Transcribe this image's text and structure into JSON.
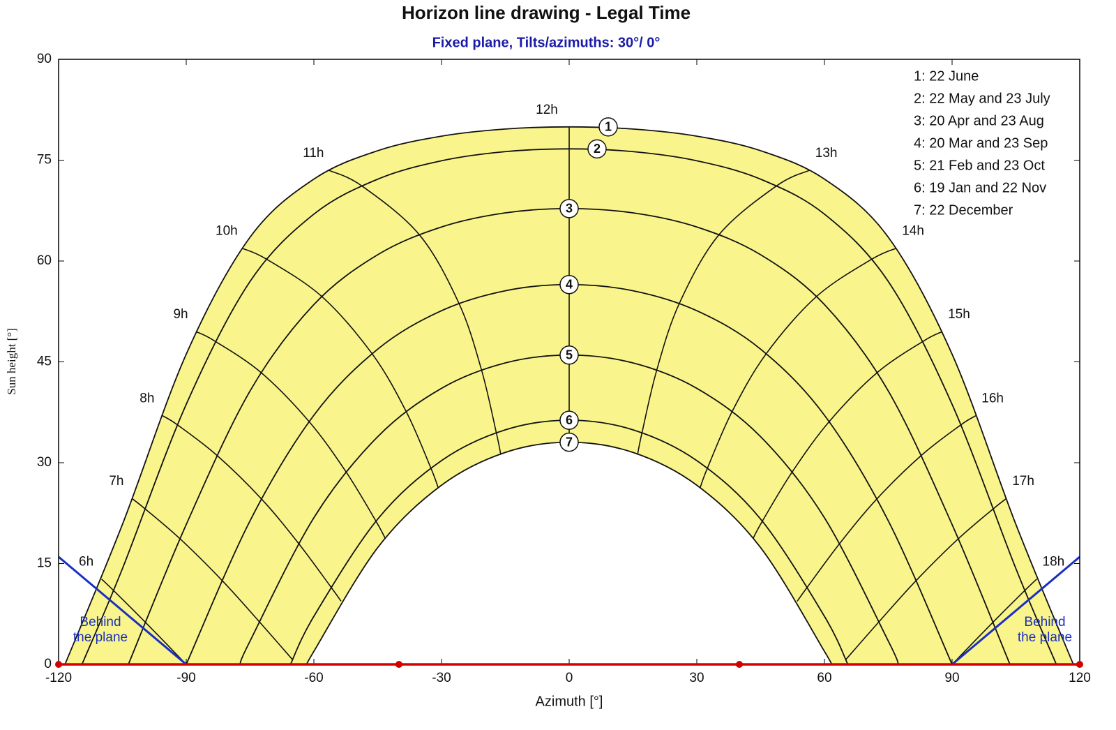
{
  "chart_data": {
    "type": "sunpath",
    "title": "Horizon line drawing - Legal Time",
    "subtitle": "Fixed plane, Tilts/azimuths: 30°/ 0°",
    "xlabel": "Azimuth [°]",
    "ylabel": "Sun height [°]",
    "xlim": [
      -120,
      120
    ],
    "ylim": [
      0,
      90
    ],
    "xticks": [
      -120,
      -90,
      -60,
      -30,
      0,
      30,
      60,
      90,
      120
    ],
    "yticks": [
      0,
      15,
      30,
      45,
      60,
      75,
      90
    ],
    "fill_color": "#f9f58c",
    "series": [
      {
        "name": "1: 22 June",
        "marker": "1",
        "color": "#111111",
        "x": [
          -118.5,
          -105,
          -90,
          -75,
          -60,
          -45,
          -30,
          -15,
          0,
          15,
          30,
          45,
          60,
          75,
          90,
          105,
          118.5
        ],
        "y": [
          0,
          20.82,
          46.14,
          63.54,
          72.18,
          76.41,
          78.57,
          79.63,
          79.95,
          79.63,
          78.57,
          76.41,
          72.18,
          63.54,
          46.14,
          20.82,
          0
        ]
      },
      {
        "name": "2: 22 May and 23 July",
        "marker": "2",
        "color": "#111111",
        "x": [
          -114.5,
          -105,
          -90,
          -75,
          -60,
          -45,
          -30,
          -15,
          0,
          15,
          30,
          45,
          60,
          75,
          90,
          105,
          114.5
        ],
        "y": [
          0,
          14.24,
          38.68,
          56.96,
          66.97,
          72.17,
          74.91,
          76.27,
          76.68,
          76.27,
          74.91,
          72.17,
          66.97,
          56.96,
          38.68,
          14.24,
          0
        ]
      },
      {
        "name": "3: 20 Apr and 23 Aug",
        "marker": "3",
        "color": "#111111",
        "x": [
          -103.6,
          -90,
          -75,
          -60,
          -45,
          -30,
          -15,
          0,
          15,
          30,
          45,
          60,
          75,
          90,
          103.6
        ],
        "y": [
          0,
          20.8,
          40.67,
          53.52,
          60.93,
          65.06,
          67.16,
          67.8,
          67.16,
          65.06,
          60.93,
          53.52,
          40.67,
          20.8,
          0
        ]
      },
      {
        "name": "4: 20 Mar and 23 Sep",
        "marker": "4",
        "color": "#111111",
        "x": [
          -90,
          -75,
          -60,
          -45,
          -30,
          -15,
          0,
          15,
          30,
          45,
          60,
          75,
          90
        ],
        "y": [
          0,
          21.36,
          37.06,
          46.89,
          52.61,
          55.58,
          56.5,
          55.58,
          52.61,
          46.89,
          37.06,
          21.36,
          0
        ]
      },
      {
        "name": "5: 21 Feb and 23 Oct",
        "marker": "5",
        "color": "#111111",
        "x": [
          -77.4,
          -75,
          -60,
          -45,
          -30,
          -15,
          0,
          15,
          30,
          45,
          60,
          75,
          77.4
        ],
        "y": [
          0,
          3.48,
          21.81,
          33.87,
          41.06,
          44.84,
          46.01,
          44.84,
          41.06,
          33.87,
          21.81,
          3.48,
          0
        ]
      },
      {
        "name": "6: 19 Jan and 22 Nov",
        "marker": "6",
        "color": "#111111",
        "x": [
          -65.5,
          -60,
          -45,
          -30,
          -15,
          0,
          15,
          30,
          45,
          60,
          65.5
        ],
        "y": [
          0,
          7.15,
          21.61,
          30.31,
          34.89,
          36.32,
          34.89,
          30.31,
          21.61,
          7.15,
          0
        ]
      },
      {
        "name": "7: 22 December",
        "marker": "7",
        "color": "#111111",
        "x": [
          -61.5,
          -60,
          -45,
          -30,
          -15,
          0,
          15,
          30,
          45,
          60,
          61.5
        ],
        "y": [
          0,
          1.94,
          17.37,
          26.65,
          31.53,
          33.05,
          31.53,
          26.65,
          17.37,
          1.94,
          0
        ]
      }
    ],
    "hour_lines": [
      {
        "label": "6h",
        "x": [
          -109.9,
          -107.1,
          -99.5,
          -90
        ],
        "y": [
          12.7,
          11.0,
          6.2,
          0
        ]
      },
      {
        "label": "7h",
        "x": [
          -102.8,
          -99.6,
          -91.4,
          -81.6,
          -72.9,
          -65.0
        ],
        "y": [
          24.7,
          23.1,
          18.65,
          12.5,
          6.4,
          0.7
        ]
      },
      {
        "label": "8h",
        "x": [
          -95.6,
          -92.0,
          -82.8,
          -72.3,
          -63.6,
          -56.1,
          -53.6
        ],
        "y": [
          37.0,
          35.6,
          31.1,
          24.6,
          18.0,
          11.6,
          9.4
        ]
      },
      {
        "label": "9h",
        "x": [
          -87.7,
          -83.3,
          -72.4,
          -61.1,
          -52.4,
          -45.4,
          -43.2
        ],
        "y": [
          49.5,
          48.1,
          43.4,
          36.1,
          28.6,
          21.3,
          18.7
        ]
      },
      {
        "label": "10h",
        "x": [
          -76.9,
          -71.1,
          -58.1,
          -46.3,
          -38.3,
          -32.5,
          -30.8
        ],
        "y": [
          61.9,
          60.26,
          54.7,
          46.2,
          37.6,
          29.2,
          26.3
        ]
      },
      {
        "label": "11h",
        "x": [
          -56.5,
          -48.8,
          -35.2,
          -25.9,
          -20.6,
          -17.1,
          -16.1
        ],
        "y": [
          73.5,
          71.2,
          63.9,
          53.7,
          43.8,
          34.4,
          31.3
        ]
      },
      {
        "label": "12h",
        "x": [
          0,
          0,
          0,
          0,
          0,
          0,
          0
        ],
        "y": [
          79.95,
          76.68,
          67.8,
          56.5,
          46.01,
          36.32,
          33.05
        ]
      },
      {
        "label": "13h",
        "x": [
          56.5,
          48.8,
          35.2,
          25.9,
          20.6,
          17.1,
          16.1
        ],
        "y": [
          73.5,
          71.2,
          63.9,
          53.7,
          43.8,
          34.4,
          31.3
        ]
      },
      {
        "label": "14h",
        "x": [
          76.9,
          71.1,
          58.1,
          46.3,
          38.3,
          32.5,
          30.8
        ],
        "y": [
          61.9,
          60.26,
          54.7,
          46.2,
          37.6,
          29.2,
          26.3
        ]
      },
      {
        "label": "15h",
        "x": [
          87.7,
          83.3,
          72.4,
          61.1,
          52.4,
          45.4,
          43.2
        ],
        "y": [
          49.5,
          48.1,
          43.4,
          36.1,
          28.6,
          21.3,
          18.7
        ]
      },
      {
        "label": "16h",
        "x": [
          95.6,
          92.0,
          82.8,
          72.3,
          63.6,
          56.1,
          53.6
        ],
        "y": [
          37.0,
          35.6,
          31.1,
          24.6,
          18.0,
          11.6,
          9.4
        ]
      },
      {
        "label": "17h",
        "x": [
          102.8,
          99.6,
          91.4,
          81.6,
          72.9,
          65.0
        ],
        "y": [
          24.7,
          23.1,
          18.65,
          12.5,
          6.4,
          0.7
        ]
      },
      {
        "label": "18h",
        "x": [
          109.9,
          107.1,
          99.5,
          90
        ],
        "y": [
          12.7,
          11.0,
          6.2,
          0
        ]
      }
    ],
    "horizon": {
      "color": "#d40000",
      "x": [
        -120,
        -40,
        40,
        120
      ],
      "y": [
        0,
        0,
        0,
        0
      ]
    },
    "behind_plane": {
      "color": "#1a2fc0",
      "label": [
        "Behind",
        "the plane"
      ],
      "lines": [
        {
          "x": [
            -120,
            -90
          ],
          "y": [
            16,
            0
          ]
        },
        {
          "x": [
            90,
            120
          ],
          "y": [
            0,
            16
          ]
        }
      ]
    }
  }
}
